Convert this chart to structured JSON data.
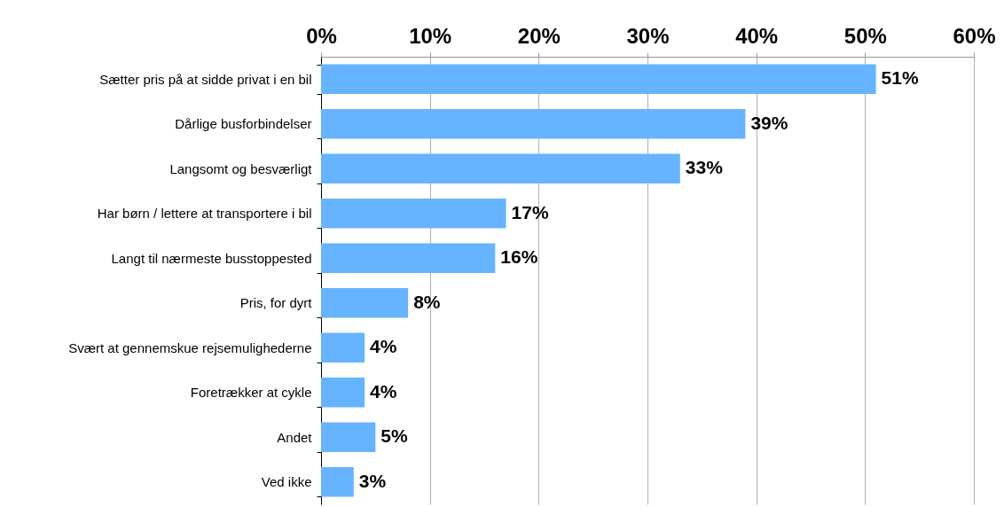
{
  "chart_data": {
    "type": "bar",
    "orientation": "horizontal",
    "categories": [
      "Sætter pris på at sidde privat i en bil",
      "Dårlige busforbindelser",
      "Langsomt og besværligt",
      "Har børn / lettere at transportere i bil",
      "Langt til nærmeste busstoppested",
      "Pris, for dyrt",
      "Svært at gennemskue rejsemulighederne",
      "Foretrækker at cykle",
      "Andet",
      "Ved ikke"
    ],
    "values": [
      51,
      39,
      33,
      17,
      16,
      8,
      4,
      4,
      5,
      3
    ],
    "value_labels": [
      "51%",
      "39%",
      "33%",
      "17%",
      "16%",
      "8%",
      "4%",
      "4%",
      "5%",
      "3%"
    ],
    "color": "#66b3ff",
    "xlim": [
      0,
      60
    ],
    "xticks": [
      {
        "value": 0,
        "label": "0%"
      },
      {
        "value": 10,
        "label": "10%"
      },
      {
        "value": 20,
        "label": "20%"
      },
      {
        "value": 30,
        "label": "30%"
      },
      {
        "value": 40,
        "label": "40%"
      },
      {
        "value": 50,
        "label": "50%"
      },
      {
        "value": 60,
        "label": "60%"
      }
    ],
    "grid": "x"
  }
}
